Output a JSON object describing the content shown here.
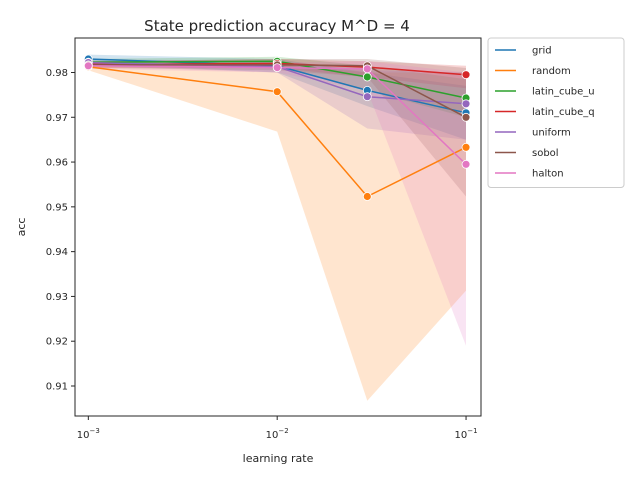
{
  "chart_data": {
    "type": "line",
    "title": "State prediction accuracy M^D = 4",
    "xlabel": "learning rate",
    "ylabel": "acc",
    "xscale": "log",
    "xlim": [
      0.00085,
      0.12
    ],
    "ylim": [
      0.9033,
      0.9877
    ],
    "x": [
      0.001,
      0.01,
      0.03,
      0.1
    ],
    "xticks": [
      {
        "value": 0.001,
        "base": "10",
        "exp": "−3"
      },
      {
        "value": 0.01,
        "base": "10",
        "exp": "−2"
      },
      {
        "value": 0.1,
        "base": "10",
        "exp": "−1"
      }
    ],
    "yticks": [
      0.91,
      0.92,
      0.93,
      0.94,
      0.95,
      0.96,
      0.97,
      0.98
    ],
    "ytick_labels": [
      "0.91",
      "0.92",
      "0.93",
      "0.94",
      "0.95",
      "0.96",
      "0.97",
      "0.98"
    ],
    "grid": false,
    "legend_position": "outside-top-right",
    "series": [
      {
        "name": "grid",
        "color": "#1f77b4",
        "values": [
          0.983,
          0.9815,
          0.976,
          0.971
        ],
        "lower": [
          0.982,
          0.98,
          0.9725,
          0.965
        ],
        "upper": [
          0.984,
          0.983,
          0.98,
          0.977
        ]
      },
      {
        "name": "random",
        "color": "#ff7f0e",
        "values": [
          0.9813,
          0.9757,
          0.9523,
          0.9633
        ],
        "lower": [
          0.9805,
          0.9668,
          0.9067,
          0.9313
        ],
        "upper": [
          0.982,
          0.9818,
          0.98,
          0.98
        ]
      },
      {
        "name": "latin_cube_u",
        "color": "#2ca02c",
        "values": [
          0.9823,
          0.9825,
          0.979,
          0.9743
        ],
        "lower": [
          0.9815,
          0.9815,
          0.976,
          0.97
        ],
        "upper": [
          0.983,
          0.9835,
          0.9815,
          0.9785
        ]
      },
      {
        "name": "latin_cube_q",
        "color": "#d62728",
        "values": [
          0.9818,
          0.982,
          0.9812,
          0.9795
        ],
        "lower": [
          0.981,
          0.981,
          0.979,
          0.9765
        ],
        "upper": [
          0.9825,
          0.983,
          0.9825,
          0.9815
        ]
      },
      {
        "name": "uniform",
        "color": "#9467bd",
        "values": [
          0.9822,
          0.9813,
          0.9746,
          0.973
        ],
        "lower": [
          0.9815,
          0.98,
          0.9675,
          0.965
        ],
        "upper": [
          0.983,
          0.9825,
          0.9805,
          0.98
        ]
      },
      {
        "name": "sobol",
        "color": "#8c564b",
        "values": [
          0.9817,
          0.9817,
          0.9815,
          0.97
        ],
        "lower": [
          0.981,
          0.9805,
          0.979,
          0.9523
        ],
        "upper": [
          0.9825,
          0.983,
          0.983,
          0.981
        ]
      },
      {
        "name": "halton",
        "color": "#e377c2",
        "values": [
          0.9815,
          0.9811,
          0.9808,
          0.9595
        ],
        "lower": [
          0.9808,
          0.98,
          0.976,
          0.919
        ],
        "upper": [
          0.9822,
          0.9822,
          0.9825,
          0.98
        ]
      }
    ]
  }
}
